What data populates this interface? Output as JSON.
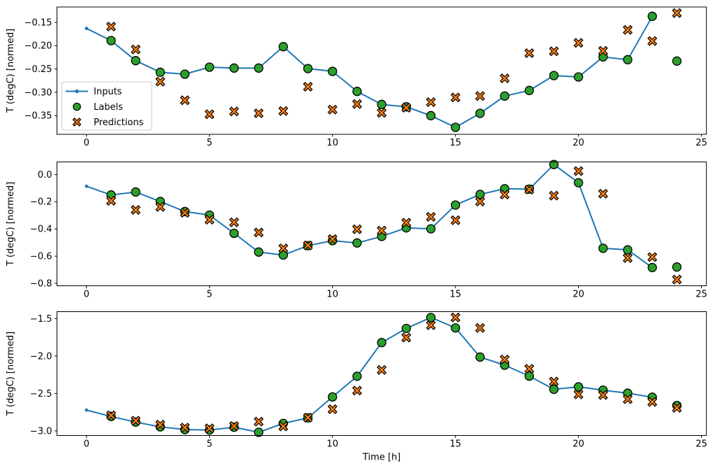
{
  "figure": {
    "ylabel": "T (degC) [normed]",
    "xlabel": "Time [h]",
    "background": "#ffffff",
    "legend": {
      "items": [
        {
          "key": "inputs",
          "label": "Inputs"
        },
        {
          "key": "labels",
          "label": "Labels"
        },
        {
          "key": "predictions",
          "label": "Predictions"
        }
      ]
    },
    "colors": {
      "inputs": "#1f77b4",
      "labels": "#2ca02c",
      "predictions": "#ff7f0e",
      "marker_edge": "#000000",
      "axis": "#000000",
      "legend_border": "#cccccc"
    }
  },
  "chart_data": [
    {
      "type": "line",
      "name": "subplot-1",
      "ylabel": "T (degC) [normed]",
      "xlim": [
        -1.2,
        25.2
      ],
      "ylim": [
        -0.39,
        -0.117
      ],
      "xticks": [
        0,
        5,
        10,
        15,
        20,
        25
      ],
      "xtick_labels": [
        "0",
        "5",
        "10",
        "15",
        "20",
        "25"
      ],
      "yticks": [
        -0.15,
        -0.2,
        -0.25,
        -0.3,
        -0.35
      ],
      "ytick_labels": [
        "−0.15",
        "−0.20",
        "−0.25",
        "−0.30",
        "−0.35"
      ],
      "grid": false,
      "legend_position": "center left",
      "series": [
        {
          "name": "Inputs",
          "type": "line",
          "x": [
            0,
            1,
            2,
            3,
            4,
            5,
            6,
            7,
            8,
            9,
            10,
            11,
            12,
            13,
            14,
            15,
            16,
            17,
            18,
            19,
            20,
            21,
            22,
            23
          ],
          "values": [
            -0.163,
            -0.189,
            -0.232,
            -0.257,
            -0.261,
            -0.246,
            -0.248,
            -0.248,
            -0.202,
            -0.249,
            -0.255,
            -0.298,
            -0.326,
            -0.331,
            -0.35,
            -0.375,
            -0.345,
            -0.308,
            -0.296,
            -0.264,
            -0.267,
            -0.224,
            -0.23,
            -0.137
          ]
        },
        {
          "name": "Labels",
          "type": "scatter",
          "x": [
            1,
            2,
            3,
            4,
            5,
            6,
            7,
            8,
            9,
            10,
            11,
            12,
            13,
            14,
            15,
            16,
            17,
            18,
            19,
            20,
            21,
            22,
            23,
            24
          ],
          "values": [
            -0.189,
            -0.232,
            -0.257,
            -0.261,
            -0.246,
            -0.248,
            -0.248,
            -0.202,
            -0.249,
            -0.255,
            -0.298,
            -0.326,
            -0.331,
            -0.35,
            -0.375,
            -0.345,
            -0.308,
            -0.296,
            -0.264,
            -0.267,
            -0.224,
            -0.23,
            -0.137,
            -0.233
          ]
        },
        {
          "name": "Predictions",
          "type": "scatter",
          "x": [
            1,
            2,
            3,
            4,
            5,
            6,
            7,
            8,
            9,
            10,
            11,
            12,
            13,
            14,
            15,
            16,
            17,
            18,
            19,
            20,
            21,
            22,
            23,
            24
          ],
          "values": [
            -0.159,
            -0.208,
            -0.277,
            -0.317,
            -0.347,
            -0.341,
            -0.345,
            -0.34,
            -0.288,
            -0.337,
            -0.325,
            -0.344,
            -0.333,
            -0.321,
            -0.311,
            -0.308,
            -0.27,
            -0.216,
            -0.212,
            -0.194,
            -0.211,
            -0.166,
            -0.19,
            -0.13
          ]
        }
      ]
    },
    {
      "type": "line",
      "name": "subplot-2",
      "ylabel": "T (degC) [normed]",
      "xlim": [
        -1.2,
        25.2
      ],
      "ylim": [
        -0.818,
        0.093
      ],
      "xticks": [
        0,
        5,
        10,
        15,
        20,
        25
      ],
      "xtick_labels": [
        "0",
        "5",
        "10",
        "15",
        "20",
        "25"
      ],
      "yticks": [
        0.0,
        -0.2,
        -0.4,
        -0.6,
        -0.8
      ],
      "ytick_labels": [
        "0.0",
        "−0.2",
        "−0.4",
        "−0.6",
        "−0.8"
      ],
      "grid": false,
      "series": [
        {
          "name": "Inputs",
          "type": "line",
          "x": [
            0,
            1,
            2,
            3,
            4,
            5,
            6,
            7,
            8,
            9,
            10,
            11,
            12,
            13,
            14,
            15,
            16,
            17,
            18,
            19,
            20,
            21,
            22,
            23
          ],
          "values": [
            -0.086,
            -0.15,
            -0.128,
            -0.198,
            -0.272,
            -0.298,
            -0.432,
            -0.57,
            -0.592,
            -0.523,
            -0.486,
            -0.503,
            -0.455,
            -0.392,
            -0.399,
            -0.224,
            -0.146,
            -0.104,
            -0.107,
            0.074,
            -0.06,
            -0.542,
            -0.554,
            -0.684
          ]
        },
        {
          "name": "Labels",
          "type": "scatter",
          "x": [
            1,
            2,
            3,
            4,
            5,
            6,
            7,
            8,
            9,
            10,
            11,
            12,
            13,
            14,
            15,
            16,
            17,
            18,
            19,
            20,
            21,
            22,
            23,
            24
          ],
          "values": [
            -0.15,
            -0.128,
            -0.198,
            -0.272,
            -0.298,
            -0.432,
            -0.57,
            -0.592,
            -0.523,
            -0.486,
            -0.503,
            -0.455,
            -0.392,
            -0.399,
            -0.224,
            -0.146,
            -0.104,
            -0.107,
            0.074,
            -0.06,
            -0.542,
            -0.554,
            -0.684,
            -0.68
          ]
        },
        {
          "name": "Predictions",
          "type": "scatter",
          "x": [
            1,
            2,
            3,
            4,
            5,
            6,
            7,
            8,
            9,
            10,
            11,
            12,
            13,
            14,
            15,
            16,
            17,
            18,
            19,
            20,
            21,
            22,
            23,
            24
          ],
          "values": [
            -0.193,
            -0.26,
            -0.238,
            -0.281,
            -0.332,
            -0.351,
            -0.426,
            -0.543,
            -0.521,
            -0.475,
            -0.402,
            -0.412,
            -0.354,
            -0.311,
            -0.336,
            -0.198,
            -0.147,
            -0.11,
            -0.155,
            0.026,
            -0.141,
            -0.614,
            -0.607,
            -0.772
          ]
        }
      ]
    },
    {
      "type": "line",
      "name": "subplot-3",
      "ylabel": "T (degC) [normed]",
      "xlabel": "Time [h]",
      "xlim": [
        -1.2,
        25.2
      ],
      "ylim": [
        -3.061,
        -1.407
      ],
      "xticks": [
        0,
        5,
        10,
        15,
        20,
        25
      ],
      "xtick_labels": [
        "0",
        "5",
        "10",
        "15",
        "20",
        "25"
      ],
      "yticks": [
        -1.5,
        -2.0,
        -2.5,
        -3.0
      ],
      "ytick_labels": [
        "−1.5",
        "−2.0",
        "−2.5",
        "−3.0"
      ],
      "grid": false,
      "series": [
        {
          "name": "Inputs",
          "type": "line",
          "x": [
            0,
            1,
            2,
            3,
            4,
            5,
            6,
            7,
            8,
            9,
            10,
            11,
            12,
            13,
            14,
            15,
            16,
            17,
            18,
            19,
            20,
            21,
            22,
            23
          ],
          "values": [
            -2.722,
            -2.807,
            -2.882,
            -2.946,
            -2.982,
            -2.988,
            -2.951,
            -3.018,
            -2.9,
            -2.826,
            -2.546,
            -2.27,
            -1.82,
            -1.631,
            -1.485,
            -1.624,
            -2.014,
            -2.122,
            -2.268,
            -2.444,
            -2.412,
            -2.456,
            -2.496,
            -2.55
          ]
        },
        {
          "name": "Labels",
          "type": "scatter",
          "x": [
            1,
            2,
            3,
            4,
            5,
            6,
            7,
            8,
            9,
            10,
            11,
            12,
            13,
            14,
            15,
            16,
            17,
            18,
            19,
            20,
            21,
            22,
            23,
            24
          ],
          "values": [
            -2.807,
            -2.882,
            -2.946,
            -2.982,
            -2.988,
            -2.951,
            -3.018,
            -2.9,
            -2.826,
            -2.546,
            -2.27,
            -1.82,
            -1.631,
            -1.485,
            -1.624,
            -2.014,
            -2.122,
            -2.268,
            -2.444,
            -2.412,
            -2.456,
            -2.496,
            -2.55,
            -2.66
          ]
        },
        {
          "name": "Predictions",
          "type": "scatter",
          "x": [
            1,
            2,
            3,
            4,
            5,
            6,
            7,
            8,
            9,
            10,
            11,
            12,
            13,
            14,
            15,
            16,
            17,
            18,
            19,
            20,
            21,
            22,
            23,
            24
          ],
          "values": [
            -2.792,
            -2.864,
            -2.917,
            -2.956,
            -2.966,
            -2.935,
            -2.876,
            -2.94,
            -2.822,
            -2.71,
            -2.461,
            -2.186,
            -1.753,
            -1.588,
            -1.485,
            -1.625,
            -2.046,
            -2.171,
            -2.341,
            -2.512,
            -2.521,
            -2.576,
            -2.613,
            -2.692
          ]
        }
      ]
    }
  ]
}
